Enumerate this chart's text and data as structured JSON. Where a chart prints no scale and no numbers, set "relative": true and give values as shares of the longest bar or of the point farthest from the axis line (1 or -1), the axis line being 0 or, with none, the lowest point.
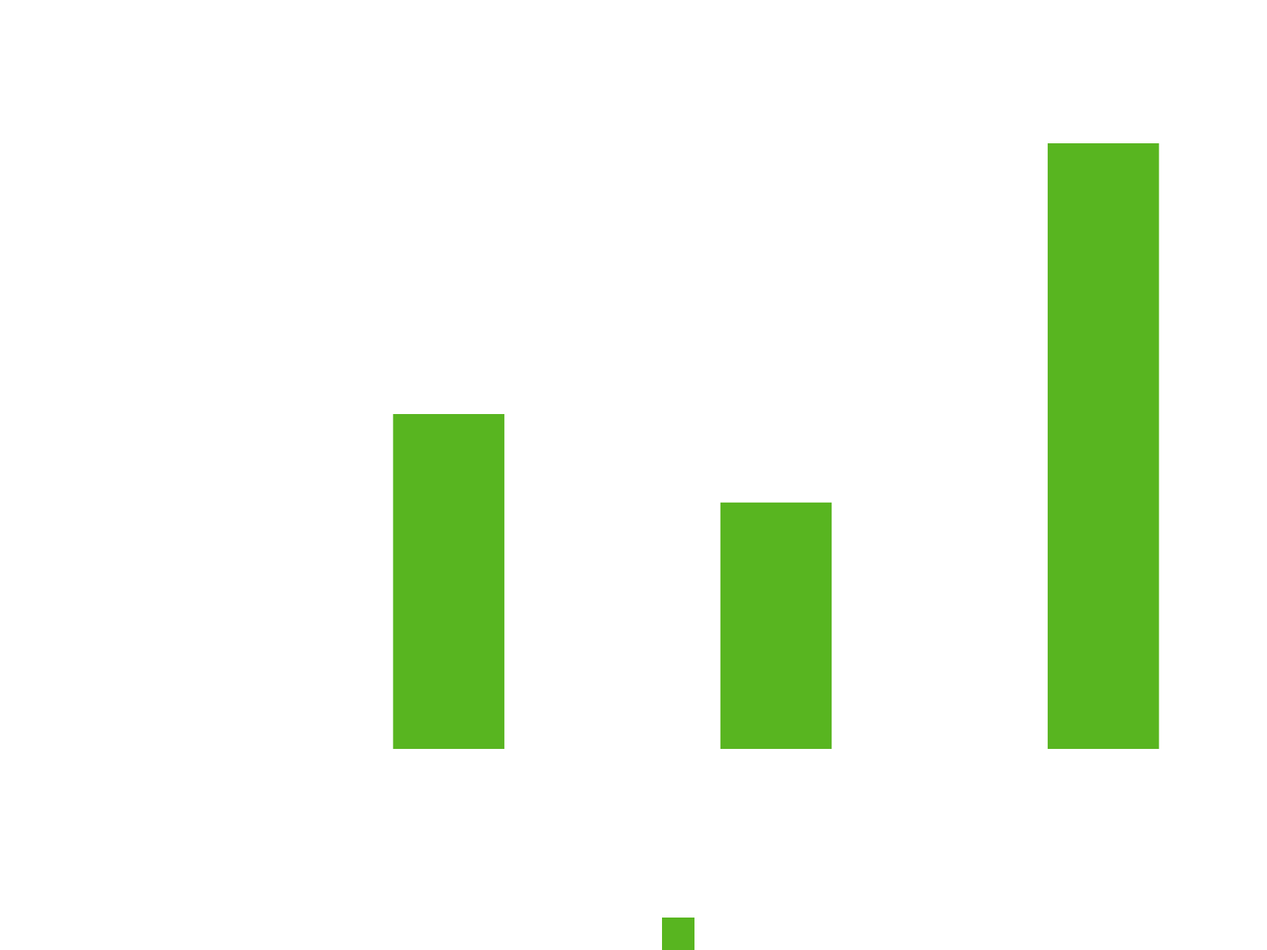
{
  "chart_data": {
    "type": "bar",
    "relative": true,
    "categories": [
      null,
      null,
      null
    ],
    "series": [
      {
        "color": "#58b520",
        "values": [
          0.553,
          0.407,
          1
        ]
      }
    ]
  }
}
